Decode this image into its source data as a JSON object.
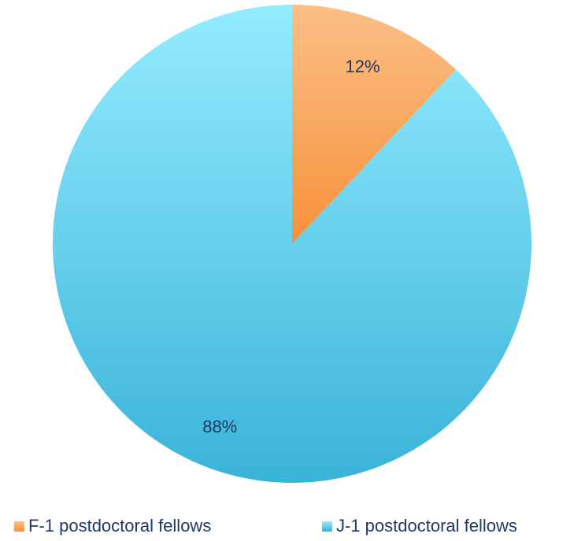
{
  "chart_data": {
    "type": "pie",
    "title": "",
    "slices": [
      {
        "name": "F-1 postdoctoral fellows",
        "value": 12,
        "label": "12%",
        "color": "#f79646"
      },
      {
        "name": "J-1 postdoctoral fellows",
        "value": 88,
        "label": "88%",
        "color": "#4bc4e6"
      }
    ],
    "start_angle": "12 o'clock, clockwise",
    "legend_position": "bottom"
  },
  "legend": {
    "items": [
      {
        "label": "F-1 postdoctoral fellows",
        "color": "#f79646"
      },
      {
        "label": "J-1 postdoctoral fellows",
        "color": "#4bc4e6"
      }
    ]
  }
}
